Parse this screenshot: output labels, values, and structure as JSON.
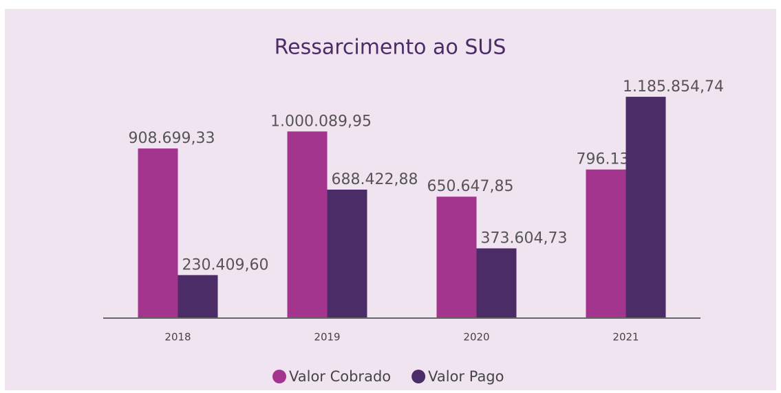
{
  "chart_data": {
    "type": "bar",
    "title": "Ressarcimento ao SUS",
    "categories": [
      "2018",
      "2019",
      "2020",
      "2021"
    ],
    "series": [
      {
        "name": "Valor Cobrado",
        "color": "#a3358f",
        "values": [
          908699.33,
          1000089.95,
          650647.85,
          796132.93
        ],
        "value_labels": [
          "908.699,33",
          "1.000.089,95",
          "650.647,85",
          "796.132,93"
        ]
      },
      {
        "name": "Valor Pago",
        "color": "#4b2c66",
        "values": [
          230409.6,
          688422.88,
          373604.73,
          1185854.74
        ],
        "value_labels": [
          "230.409,60",
          "688.422,88",
          "373.604,73",
          "1.185.854,74"
        ]
      }
    ],
    "ylim": [
      0,
      1200000
    ],
    "grid": false,
    "legend": "bottom"
  }
}
